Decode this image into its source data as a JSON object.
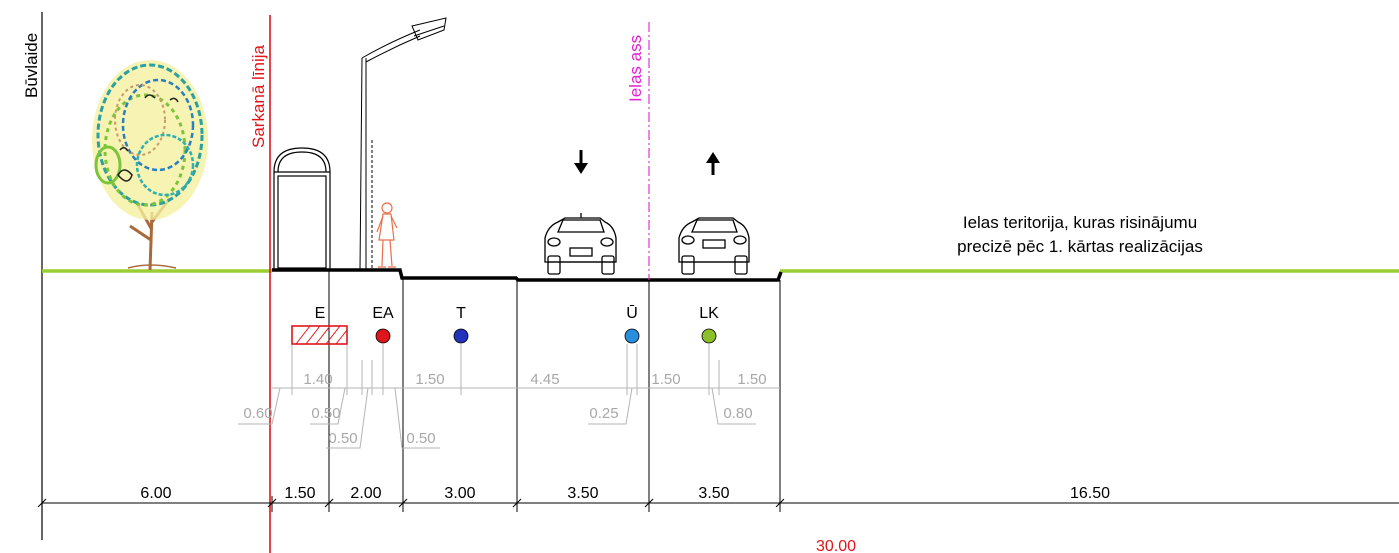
{
  "colors": {
    "red_line": "#e0151b",
    "axis_line": "#e020d0",
    "ground": "#9acd32",
    "subdim": "#b4b4b4",
    "util_E": "#e0151b",
    "util_EA": "#e0151b",
    "util_T": "#2233bb",
    "util_U": "#2a8ee0",
    "util_LK": "#8ac02a"
  },
  "labels": {
    "buvlaide": "Būvlaide",
    "sarkana_linija": "Sarkanā līnija",
    "ielas_ass": "Ielas ass",
    "note_line1": "Ielas teritorija, kuras risinājumu",
    "note_line2": "precizē pēc 1. kārtas realizācijas"
  },
  "utilities": [
    {
      "id": "E",
      "label": "E"
    },
    {
      "id": "EA",
      "label": "EA"
    },
    {
      "id": "T",
      "label": "T"
    },
    {
      "id": "U",
      "label": "Ū"
    },
    {
      "id": "LK",
      "label": "LK"
    }
  ],
  "sub_dimensions": [
    "1.40",
    "1.50",
    "4.45",
    "1.50",
    "1.50",
    "0.60",
    "0.50",
    "0.25",
    "0.80",
    "0.50",
    "0.50"
  ],
  "main_dimensions": [
    "6.00",
    "1.50",
    "2.00",
    "3.00",
    "3.50",
    "3.50",
    "16.50"
  ],
  "total_width": "30.00",
  "icons": [
    "tree-icon",
    "street-lamp-icon",
    "bus-shelter-icon",
    "pedestrian-icon",
    "car-icon",
    "car-icon",
    "direction-arrow-down-icon",
    "direction-arrow-up-icon"
  ]
}
